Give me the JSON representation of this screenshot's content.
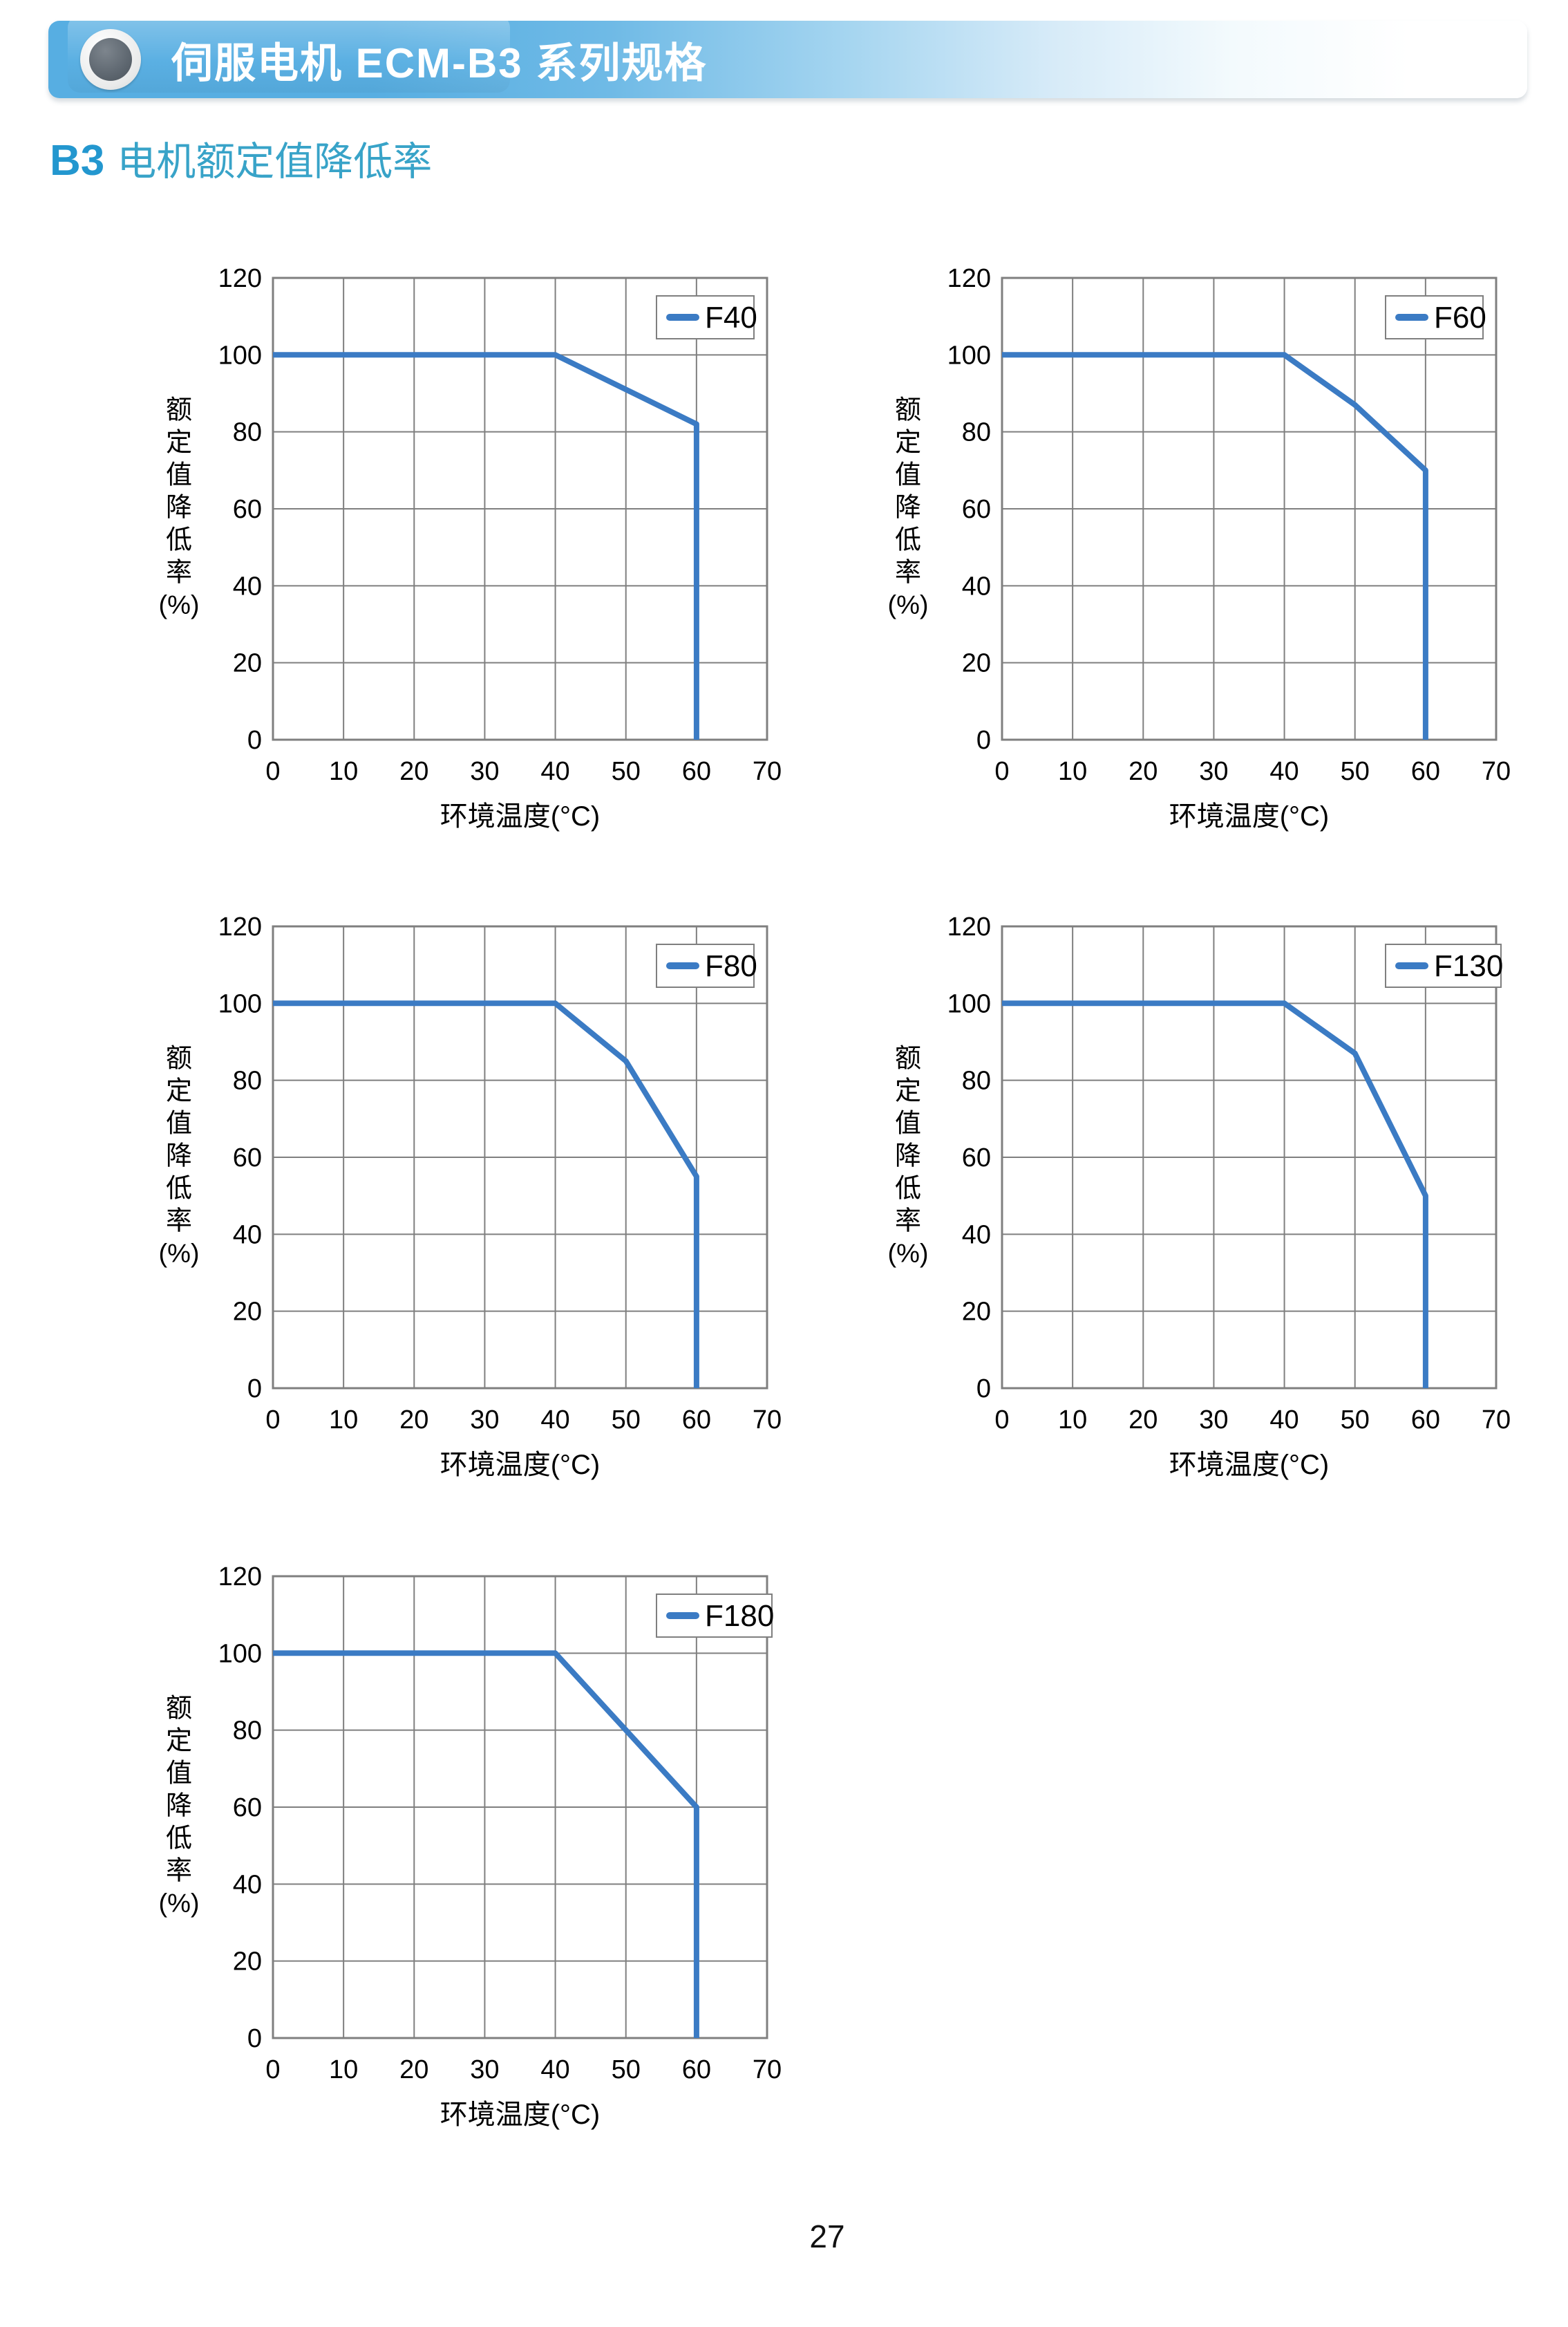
{
  "header": {
    "title": "伺服电机 ECM-B3 系列规格",
    "icon": "section-bullet-circle"
  },
  "subtitle": {
    "prefix": "B3",
    "text": "电机额定值降低率"
  },
  "footer": {
    "page_number": "27"
  },
  "colors": {
    "banner_blue": "#57aee2",
    "subtitle_prefix_blue": "#2397cf",
    "subtitle_text_blue": "#38a3c8",
    "series_line": "#3b7bc4",
    "grid": "#7f7f7f",
    "text": "#000000"
  },
  "chart_common": {
    "xlabel": "环境温度(°C)",
    "ylabel": "额定值降低率(%)",
    "ylabel_chars": [
      "额",
      "定",
      "值",
      "降",
      "低",
      "率",
      "(%)"
    ],
    "x_ticks": [
      0,
      10,
      20,
      30,
      40,
      50,
      60,
      70
    ],
    "y_ticks": [
      0,
      20,
      40,
      60,
      80,
      100,
      120
    ],
    "xlim": [
      0,
      70
    ],
    "ylim": [
      0,
      120
    ],
    "grid": true,
    "legend_position": "top-right"
  },
  "chart_data": [
    {
      "type": "line",
      "name": "F40",
      "x": [
        0,
        40,
        60,
        60
      ],
      "y": [
        100,
        100,
        82,
        0
      ]
    },
    {
      "type": "line",
      "name": "F60",
      "x": [
        0,
        40,
        50,
        60,
        60
      ],
      "y": [
        100,
        100,
        87,
        70,
        0
      ]
    },
    {
      "type": "line",
      "name": "F80",
      "x": [
        0,
        40,
        50,
        60,
        60
      ],
      "y": [
        100,
        100,
        85,
        55,
        0
      ]
    },
    {
      "type": "line",
      "name": "F130",
      "x": [
        0,
        40,
        50,
        60,
        60
      ],
      "y": [
        100,
        100,
        87,
        50,
        0
      ]
    },
    {
      "type": "line",
      "name": "F180",
      "x": [
        0,
        40,
        60,
        60
      ],
      "y": [
        100,
        100,
        60,
        0
      ]
    }
  ]
}
